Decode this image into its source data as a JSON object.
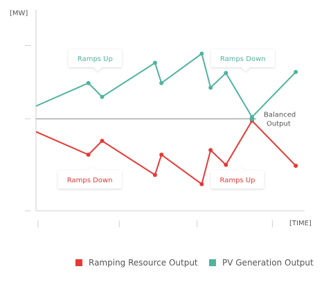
{
  "colors": {
    "ramping": "#e53935",
    "pv": "#4fb3a0",
    "axis": "#cfcfcf",
    "balanced": "#888888",
    "text": "#555555"
  },
  "legend": {
    "ramping_label": "Ramping Resource Output",
    "pv_label": "PV Generation Output"
  },
  "chart_data": {
    "type": "line",
    "title": "",
    "xlabel": "[TIME]",
    "ylabel": "[MW]",
    "xlim": [
      0,
      100
    ],
    "ylim": [
      -100,
      100
    ],
    "x_ticks": [
      0,
      31,
      60,
      88
    ],
    "y_ticks": [
      -100,
      0,
      80
    ],
    "grid": false,
    "legend_position": "bottom",
    "series": [
      {
        "name": "PV Generation Output",
        "key": "pv",
        "x": [
          0,
          19.5,
          24.6,
          44.3,
          46.7,
          61.7,
          65.0,
          70.7,
          80.4,
          96.7
        ],
        "y": [
          14,
          39,
          24,
          61,
          39,
          71,
          34,
          50,
          2,
          51
        ]
      },
      {
        "name": "Ramping Resource Output",
        "key": "ramping",
        "x": [
          0,
          19.5,
          24.6,
          44.3,
          46.7,
          61.7,
          65.0,
          70.7,
          80.4,
          96.7
        ],
        "y": [
          -14,
          -39,
          -24,
          -61,
          -39,
          -71,
          -34,
          -50,
          -2,
          -51
        ]
      }
    ],
    "reference_line": {
      "y": 0,
      "label_line1": "Balanced",
      "label_line2": "Output"
    },
    "annotations": [
      {
        "text": "Ramps Up",
        "series": "pv",
        "anchor_x": 22,
        "anchor_y": 66,
        "side": "above"
      },
      {
        "text": "Ramps Down",
        "series": "pv",
        "anchor_x": 77,
        "anchor_y": 66,
        "side": "above"
      },
      {
        "text": "Ramps Down",
        "series": "ramping",
        "anchor_x": 20,
        "anchor_y": -66,
        "side": "below"
      },
      {
        "text": "Ramps Up",
        "series": "ramping",
        "anchor_x": 75,
        "anchor_y": -66,
        "side": "below"
      }
    ],
    "balanced_point": {
      "x": 80.4,
      "y": 0
    }
  }
}
